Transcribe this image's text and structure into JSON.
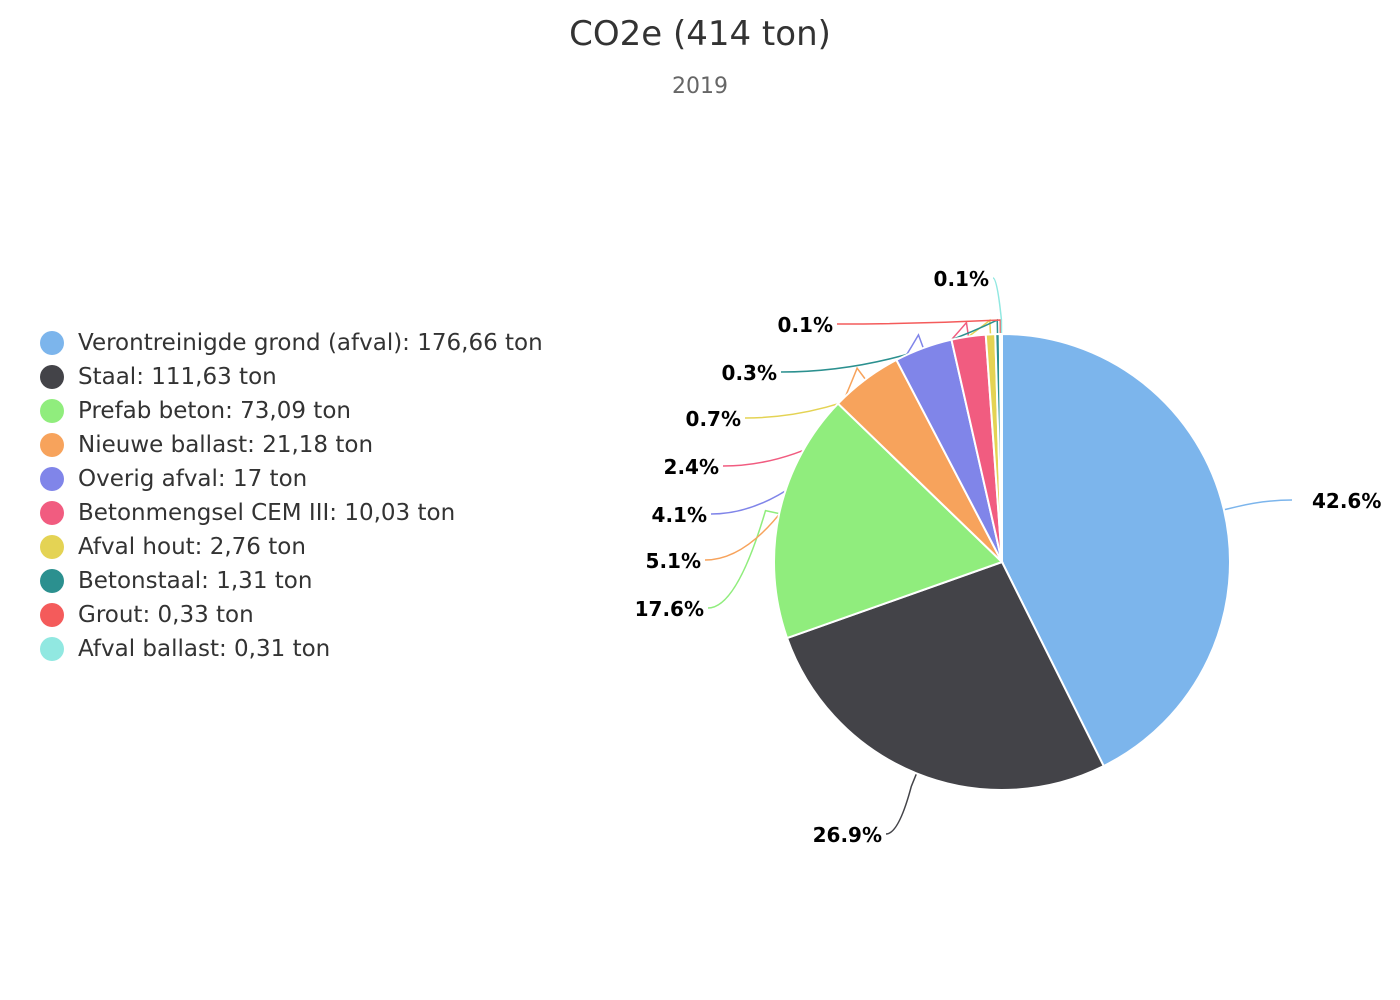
{
  "chart_data": {
    "type": "pie",
    "title": "CO2e (414 ton)",
    "subtitle": "2019",
    "legend_position": "left",
    "series": [
      {
        "name": "Verontreinigde grond (afval)",
        "value": 176.66,
        "legend_label": "Verontreinigde grond (afval): 176,66 ton",
        "percent_label": "42.6%",
        "color": "#7cb5ec"
      },
      {
        "name": "Staal",
        "value": 111.63,
        "legend_label": "Staal: 111,63 ton",
        "percent_label": "26.9%",
        "color": "#434348"
      },
      {
        "name": "Prefab beton",
        "value": 73.09,
        "legend_label": "Prefab beton: 73,09 ton",
        "percent_label": "17.6%",
        "color": "#90ed7d"
      },
      {
        "name": "Nieuwe ballast",
        "value": 21.18,
        "legend_label": "Nieuwe ballast: 21,18 ton",
        "percent_label": "5.1%",
        "color": "#f7a35c"
      },
      {
        "name": "Overig afval",
        "value": 17,
        "legend_label": "Overig afval: 17 ton",
        "percent_label": "4.1%",
        "color": "#8085e9"
      },
      {
        "name": "Betonmengsel CEM III",
        "value": 10.03,
        "legend_label": "Betonmengsel CEM III: 10,03 ton",
        "percent_label": "2.4%",
        "color": "#f15c80"
      },
      {
        "name": "Afval hout",
        "value": 2.76,
        "legend_label": "Afval hout: 2,76 ton",
        "percent_label": "0.7%",
        "color": "#e4d354"
      },
      {
        "name": "Betonstaal",
        "value": 1.31,
        "legend_label": "Betonstaal: 1,31 ton",
        "percent_label": "0.3%",
        "color": "#2b908f"
      },
      {
        "name": "Grout",
        "value": 0.33,
        "legend_label": "Grout: 0,33 ton",
        "percent_label": "0.1%",
        "color": "#f45b5b"
      },
      {
        "name": "Afval ballast",
        "value": 0.31,
        "legend_label": "Afval ballast: 0,31 ton",
        "percent_label": "0.1%",
        "color": "#91e8e1"
      }
    ]
  }
}
